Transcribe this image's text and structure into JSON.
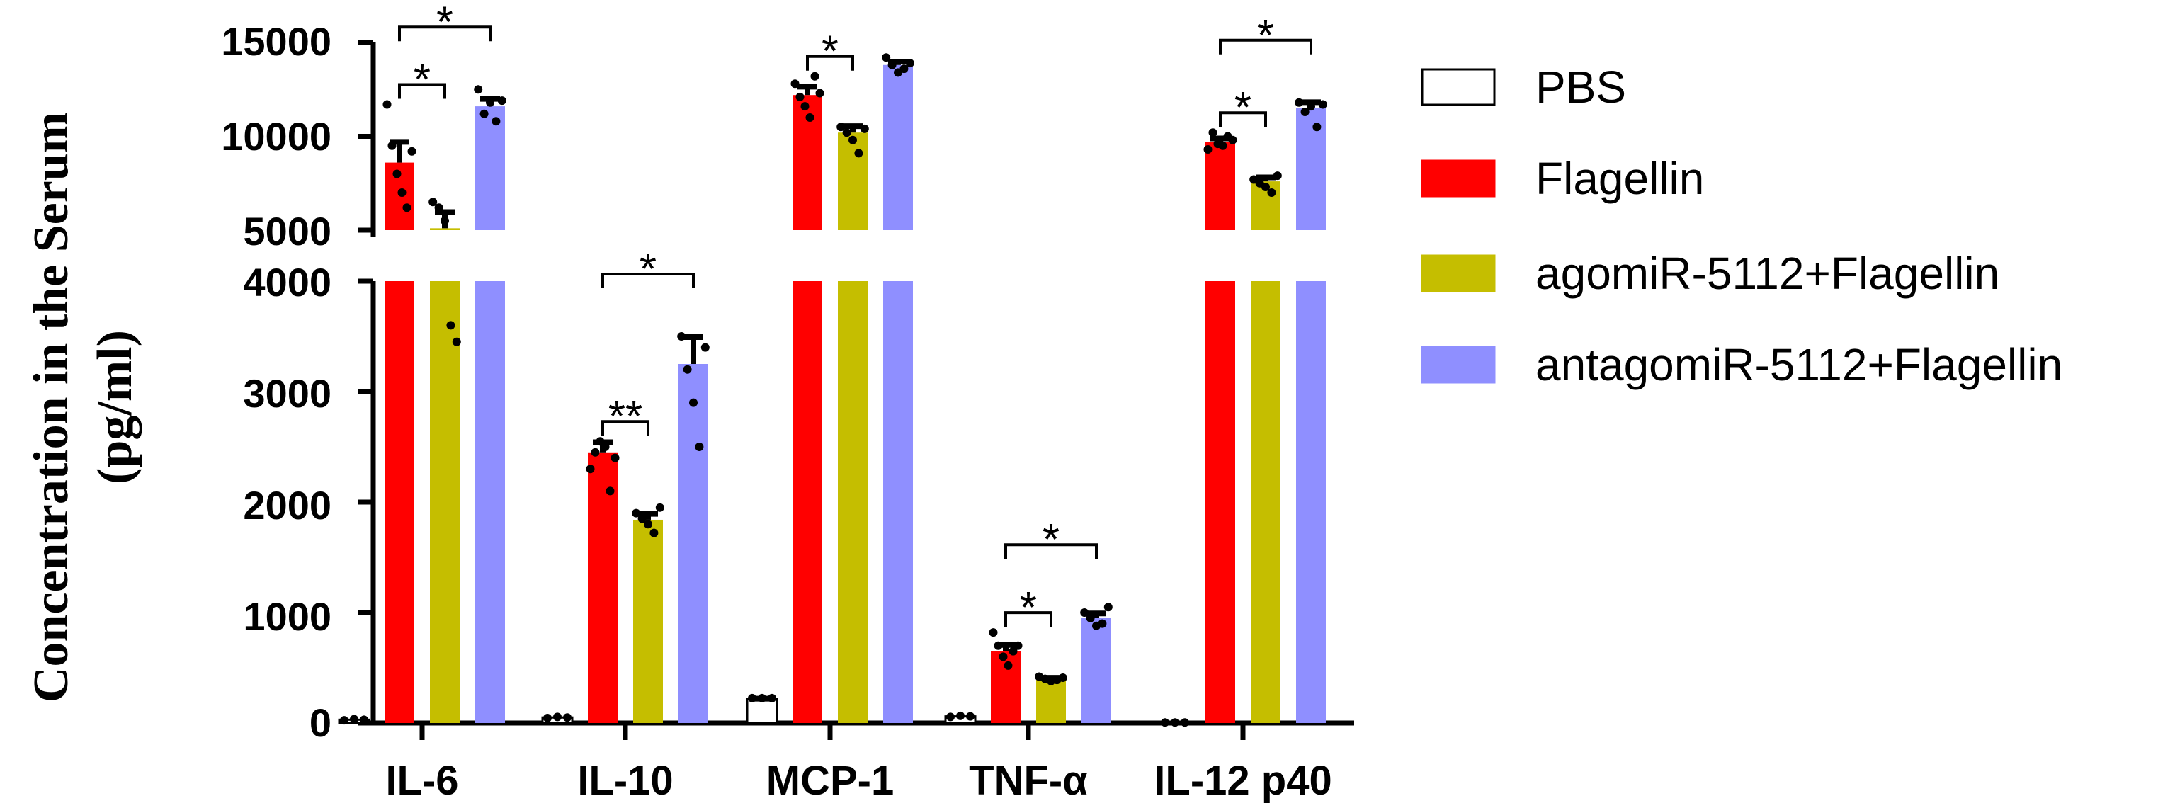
{
  "chart_data": {
    "type": "bar",
    "title": "",
    "ylabel_line1": "Concentration in the Serum",
    "ylabel_line2": "(pg/ml)",
    "xlabel": "",
    "categories": [
      "IL-6",
      "IL-10",
      "MCP-1",
      "TNF-α",
      "IL-12 p40"
    ],
    "series": [
      {
        "name": "PBS",
        "color": "#ffffff",
        "stroke": "#000000",
        "values": [
          30,
          50,
          220,
          60,
          5
        ],
        "points": [
          [
            25,
            35,
            30
          ],
          [
            45,
            55,
            50
          ],
          [
            225,
            225,
            225
          ],
          [
            55,
            65,
            60
          ],
          [
            5,
            5,
            5
          ]
        ]
      },
      {
        "name": "Flagellin",
        "color": "#ff0000",
        "stroke": "#ff0000",
        "values": [
          8600,
          2450,
          12200,
          650,
          9700
        ],
        "points": [
          [
            11700,
            9500,
            8000,
            7000,
            6200,
            9200
          ],
          [
            2300,
            2450,
            2550,
            2500,
            2100,
            2400
          ],
          [
            12800,
            12100,
            11600,
            11000,
            13200,
            12300
          ],
          [
            820,
            700,
            600,
            520,
            650,
            700
          ],
          [
            9300,
            10200,
            9600,
            9500,
            10000,
            9800
          ]
        ]
      },
      {
        "name": "agomiR-5112+Flagellin",
        "color": "#c5be00",
        "stroke": "#c5be00",
        "values": [
          5100,
          1840,
          10200,
          400,
          7600
        ],
        "points": [
          [
            6500,
            6200,
            5500,
            3600,
            3450
          ],
          [
            1900,
            1850,
            1800,
            1720,
            1950
          ],
          [
            10500,
            10200,
            9800,
            9100,
            10400
          ],
          [
            420,
            400,
            380,
            390,
            410
          ],
          [
            7700,
            7500,
            7300,
            7000,
            7900
          ]
        ]
      },
      {
        "name": "antagomiR-5112+Flagellin",
        "color": "#8f8fff",
        "stroke": "#8f8fff",
        "values": [
          11600,
          3250,
          13800,
          950,
          11500
        ],
        "points": [
          [
            12500,
            11200,
            11800,
            10800,
            11900
          ],
          [
            3500,
            3200,
            2900,
            2500,
            3400
          ],
          [
            14200,
            13800,
            13400,
            13600,
            13900
          ],
          [
            1000,
            950,
            880,
            900,
            1050
          ],
          [
            11800,
            11300,
            11600,
            10500,
            11700
          ]
        ]
      }
    ],
    "axis": {
      "lower_range": [
        0,
        4000
      ],
      "upper_range": [
        5000,
        15000
      ],
      "lower_ticks": [
        "0",
        "1000",
        "2000",
        "3000",
        "4000"
      ],
      "upper_ticks": [
        "5000",
        "10000",
        "15000"
      ]
    },
    "significance": [
      {
        "category": 0,
        "from": 1,
        "to": 2,
        "level": "low",
        "label": "*"
      },
      {
        "category": 0,
        "from": 1,
        "to": 3,
        "level": "high",
        "label": "*"
      },
      {
        "category": 1,
        "from": 1,
        "to": 2,
        "level": "low",
        "label": "**"
      },
      {
        "category": 1,
        "from": 1,
        "to": 3,
        "level": "high",
        "label": "*"
      },
      {
        "category": 2,
        "from": 1,
        "to": 2,
        "level": "low",
        "label": "*"
      },
      {
        "category": 3,
        "from": 1,
        "to": 2,
        "level": "low",
        "label": "*"
      },
      {
        "category": 3,
        "from": 1,
        "to": 3,
        "level": "high",
        "label": "*"
      },
      {
        "category": 4,
        "from": 1,
        "to": 2,
        "level": "low",
        "label": "*"
      },
      {
        "category": 4,
        "from": 1,
        "to": 3,
        "level": "high",
        "label": "*"
      }
    ],
    "legend_placement": "right",
    "grid": false
  }
}
